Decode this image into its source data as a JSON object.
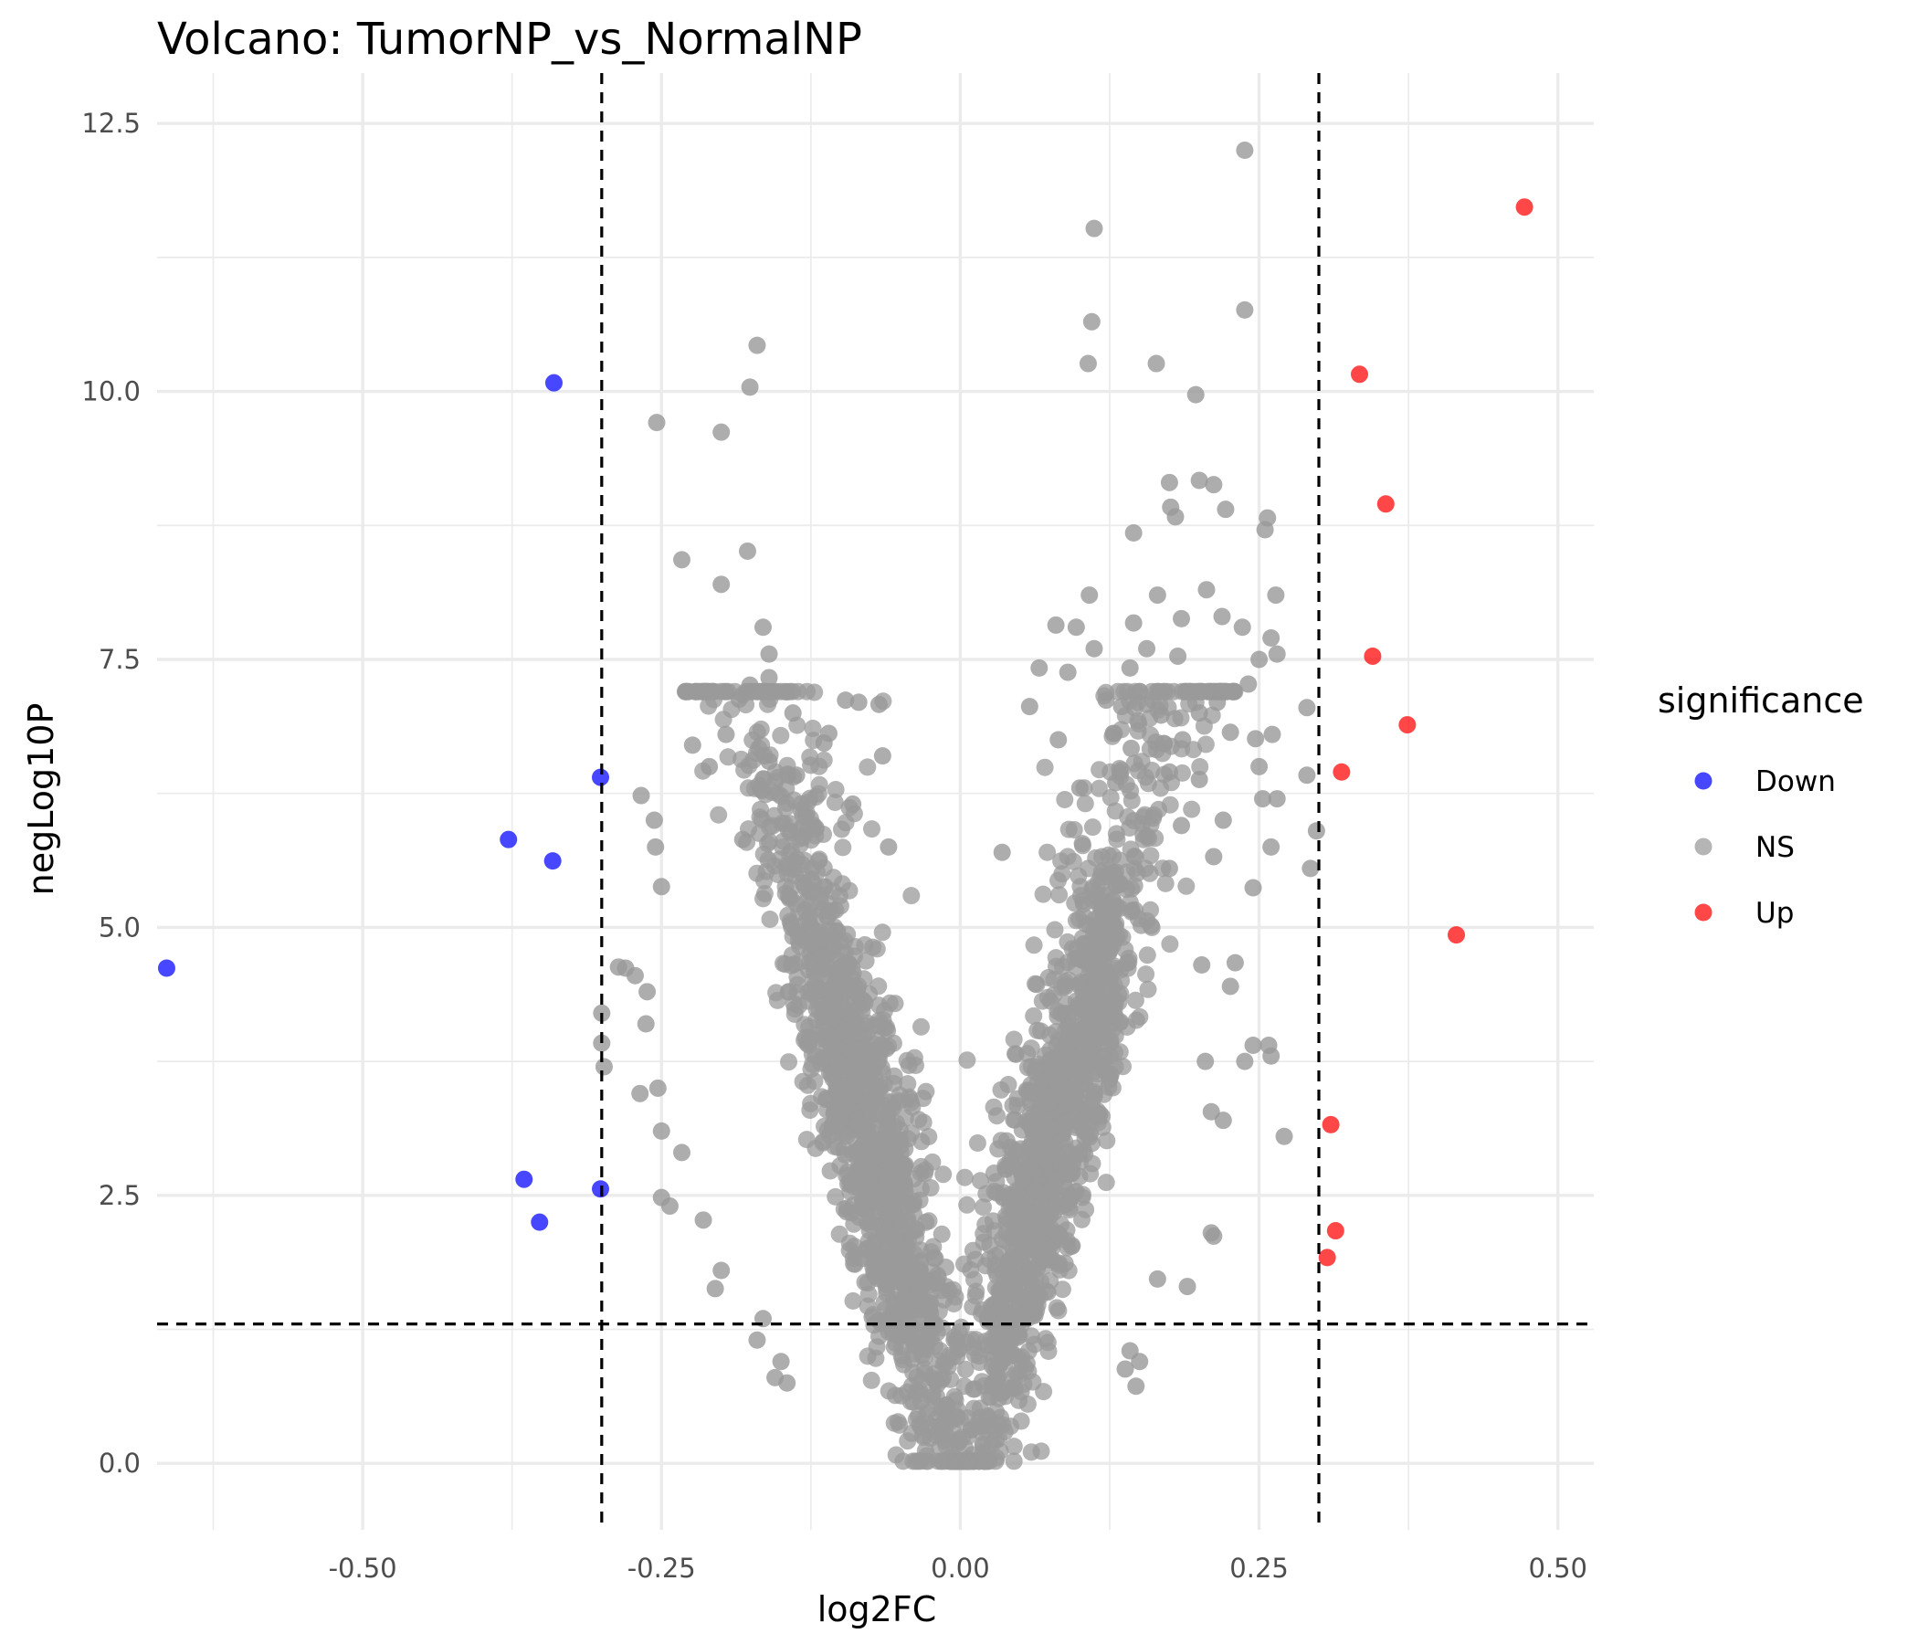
{
  "chart_data": {
    "type": "scatter",
    "title": "Volcano: TumorNP_vs_NormalNP",
    "xlabel": "log2FC",
    "ylabel": "negLog10P",
    "xlim": [
      -0.672,
      0.53
    ],
    "ylim": [
      -0.62,
      12.97
    ],
    "x_ticks": [
      -0.5,
      -0.25,
      0.0,
      0.25,
      0.5
    ],
    "x_tick_labels": [
      "-0.50",
      "-0.25",
      "0.00",
      "0.25",
      "0.50"
    ],
    "y_ticks": [
      0.0,
      2.5,
      5.0,
      7.5,
      10.0,
      12.5
    ],
    "y_tick_labels": [
      "0.0",
      "2.5",
      "5.0",
      "7.5",
      "10.0",
      "12.5"
    ],
    "thresholds": {
      "log2FC": [
        -0.3,
        0.3
      ],
      "negLog10P": 1.3
    },
    "grid": true,
    "legend": {
      "title": "significance",
      "position": "right",
      "entries": [
        {
          "label": "Down",
          "color": "#0000ff"
        },
        {
          "label": "NS",
          "color": "#999999"
        },
        {
          "label": "Up",
          "color": "#ff0000"
        }
      ]
    },
    "ns_cloud": {
      "description": "dense V-shaped cloud of non-significant genes",
      "count": 2600,
      "seed": 42
    },
    "series": [
      {
        "name": "Down",
        "color": "#0000ff",
        "points": [
          [
            -0.664,
            4.62
          ],
          [
            -0.34,
            10.08
          ],
          [
            -0.301,
            6.4
          ],
          [
            -0.378,
            5.82
          ],
          [
            -0.341,
            5.62
          ],
          [
            -0.365,
            2.65
          ],
          [
            -0.352,
            2.25
          ],
          [
            -0.301,
            2.56
          ]
        ]
      },
      {
        "name": "Up",
        "color": "#ff0000",
        "points": [
          [
            0.472,
            11.72
          ],
          [
            0.334,
            10.16
          ],
          [
            0.356,
            8.95
          ],
          [
            0.345,
            7.53
          ],
          [
            0.374,
            6.89
          ],
          [
            0.319,
            6.45
          ],
          [
            0.415,
            4.93
          ],
          [
            0.31,
            3.16
          ],
          [
            0.314,
            2.17
          ],
          [
            0.307,
            1.92
          ]
        ]
      },
      {
        "name": "NS",
        "color": "#999999",
        "points": [
          [
            0.238,
            12.25
          ],
          [
            0.112,
            11.52
          ],
          [
            0.238,
            10.76
          ],
          [
            0.11,
            10.65
          ],
          [
            -0.17,
            10.43
          ],
          [
            0.107,
            10.26
          ],
          [
            0.164,
            10.26
          ],
          [
            -0.176,
            10.04
          ],
          [
            0.197,
            9.97
          ],
          [
            -0.254,
            9.71
          ],
          [
            -0.2,
            9.62
          ],
          [
            0.2,
            9.17
          ],
          [
            0.175,
            9.15
          ],
          [
            0.212,
            9.13
          ],
          [
            0.257,
            8.82
          ],
          [
            0.176,
            8.92
          ],
          [
            0.222,
            8.9
          ],
          [
            0.18,
            8.83
          ],
          [
            0.255,
            8.71
          ],
          [
            0.145,
            8.68
          ],
          [
            -0.178,
            8.51
          ],
          [
            -0.233,
            8.43
          ],
          [
            -0.2,
            8.2
          ],
          [
            0.206,
            8.15
          ],
          [
            0.264,
            8.1
          ],
          [
            0.108,
            8.1
          ],
          [
            0.165,
            8.1
          ],
          [
            0.219,
            7.9
          ],
          [
            0.185,
            7.88
          ],
          [
            0.145,
            7.84
          ],
          [
            0.08,
            7.82
          ],
          [
            0.097,
            7.8
          ],
          [
            -0.165,
            7.8
          ],
          [
            0.236,
            7.8
          ],
          [
            0.26,
            7.7
          ],
          [
            0.112,
            7.6
          ],
          [
            0.156,
            7.6
          ],
          [
            0.265,
            7.55
          ],
          [
            0.182,
            7.53
          ],
          [
            -0.16,
            7.55
          ],
          [
            0.25,
            7.5
          ],
          [
            0.142,
            7.42
          ],
          [
            0.066,
            7.42
          ],
          [
            0.09,
            7.38
          ],
          [
            0.241,
            7.27
          ],
          [
            -0.176,
            7.26
          ],
          [
            -0.16,
            7.33
          ],
          [
            -0.185,
            7.13
          ],
          [
            0.122,
            7.12
          ],
          [
            0.215,
            7.1
          ],
          [
            0.156,
            7.08
          ],
          [
            -0.096,
            7.12
          ],
          [
            -0.068,
            7.08
          ],
          [
            -0.085,
            7.1
          ],
          [
            0.29,
            7.05
          ],
          [
            0.058,
            7.06
          ],
          [
            0.135,
            7.06
          ],
          [
            0.2,
            7.0
          ],
          [
            0.168,
            6.98
          ],
          [
            -0.14,
            7.0
          ],
          [
            0.261,
            6.8
          ],
          [
            0.226,
            6.82
          ],
          [
            0.128,
            6.81
          ],
          [
            -0.11,
            6.81
          ],
          [
            -0.196,
            6.8
          ],
          [
            0.247,
            6.76
          ],
          [
            0.082,
            6.75
          ],
          [
            0.186,
            6.75
          ],
          [
            -0.224,
            6.7
          ],
          [
            -0.114,
            6.72
          ],
          [
            0.143,
            6.67
          ],
          [
            -0.065,
            6.6
          ],
          [
            -0.16,
            6.55
          ],
          [
            0.25,
            6.5
          ],
          [
            -0.21,
            6.5
          ],
          [
            0.175,
            6.45
          ],
          [
            0.29,
            6.42
          ],
          [
            0.2,
            6.38
          ],
          [
            -0.137,
            6.42
          ],
          [
            0.13,
            6.35
          ],
          [
            0.1,
            6.3
          ],
          [
            0.253,
            6.2
          ],
          [
            0.265,
            6.2
          ],
          [
            0.22,
            6.0
          ],
          [
            -0.267,
            6.23
          ],
          [
            -0.09,
            6.15
          ],
          [
            0.298,
            5.9
          ],
          [
            0.185,
            5.95
          ],
          [
            -0.256,
            6.0
          ],
          [
            -0.182,
            5.82
          ],
          [
            0.26,
            5.75
          ],
          [
            0.212,
            5.66
          ],
          [
            -0.06,
            5.75
          ],
          [
            0.035,
            5.7
          ],
          [
            0.293,
            5.55
          ],
          [
            0.175,
            5.55
          ],
          [
            -0.255,
            5.75
          ],
          [
            0.245,
            5.37
          ],
          [
            -0.25,
            5.38
          ],
          [
            0.23,
            4.67
          ],
          [
            0.202,
            4.65
          ],
          [
            0.226,
            4.45
          ],
          [
            -0.28,
            4.62
          ],
          [
            -0.272,
            4.55
          ],
          [
            -0.286,
            4.63
          ],
          [
            -0.262,
            4.4
          ],
          [
            -0.3,
            4.2
          ],
          [
            -0.3,
            3.92
          ],
          [
            -0.298,
            3.7
          ],
          [
            -0.263,
            4.1
          ],
          [
            0.245,
            3.9
          ],
          [
            0.26,
            3.8
          ],
          [
            0.258,
            3.9
          ],
          [
            0.238,
            3.75
          ],
          [
            0.205,
            3.75
          ],
          [
            -0.268,
            3.45
          ],
          [
            -0.253,
            3.5
          ],
          [
            -0.25,
            3.1
          ],
          [
            -0.233,
            2.9
          ],
          [
            -0.25,
            2.48
          ],
          [
            -0.243,
            2.4
          ],
          [
            -0.215,
            2.27
          ],
          [
            0.271,
            3.05
          ],
          [
            0.21,
            3.28
          ],
          [
            0.212,
            2.12
          ],
          [
            0.22,
            3.2
          ],
          [
            0.21,
            2.15
          ],
          [
            -0.2,
            1.8
          ],
          [
            -0.205,
            1.63
          ],
          [
            0.19,
            1.65
          ],
          [
            0.165,
            1.72
          ],
          [
            0.15,
            0.95
          ],
          [
            0.138,
            0.88
          ],
          [
            0.147,
            0.72
          ],
          [
            -0.15,
            0.95
          ],
          [
            -0.155,
            0.8
          ],
          [
            -0.145,
            0.75
          ],
          [
            -0.165,
            1.35
          ],
          [
            -0.17,
            1.15
          ],
          [
            0.142,
            1.05
          ]
        ]
      }
    ]
  }
}
